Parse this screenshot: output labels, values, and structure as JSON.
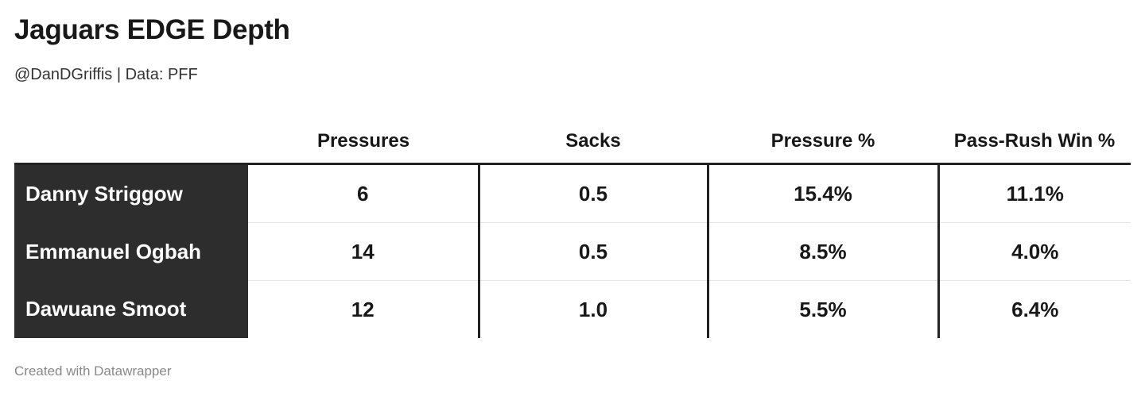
{
  "title": "Jaguars EDGE Depth",
  "subtitle": "@DanDGriffis | Data: PFF",
  "footer": "Created with Datawrapper",
  "chart_data": {
    "type": "table",
    "columns": [
      "",
      "Pressures",
      "Sacks",
      "Pressure %",
      "Pass-Rush Win %"
    ],
    "rows": [
      [
        "Danny Striggow",
        "6",
        "0.5",
        "15.4%",
        "11.1%"
      ],
      [
        "Emmanuel Ogbah",
        "14",
        "0.5",
        "8.5%",
        "4.0%"
      ],
      [
        "Dawuane Smoot",
        "12",
        "1.0",
        "5.5%",
        "6.4%"
      ]
    ],
    "colors": {
      "name_column_bg": "#2d2d2d",
      "name_text": "#ffffff"
    }
  }
}
